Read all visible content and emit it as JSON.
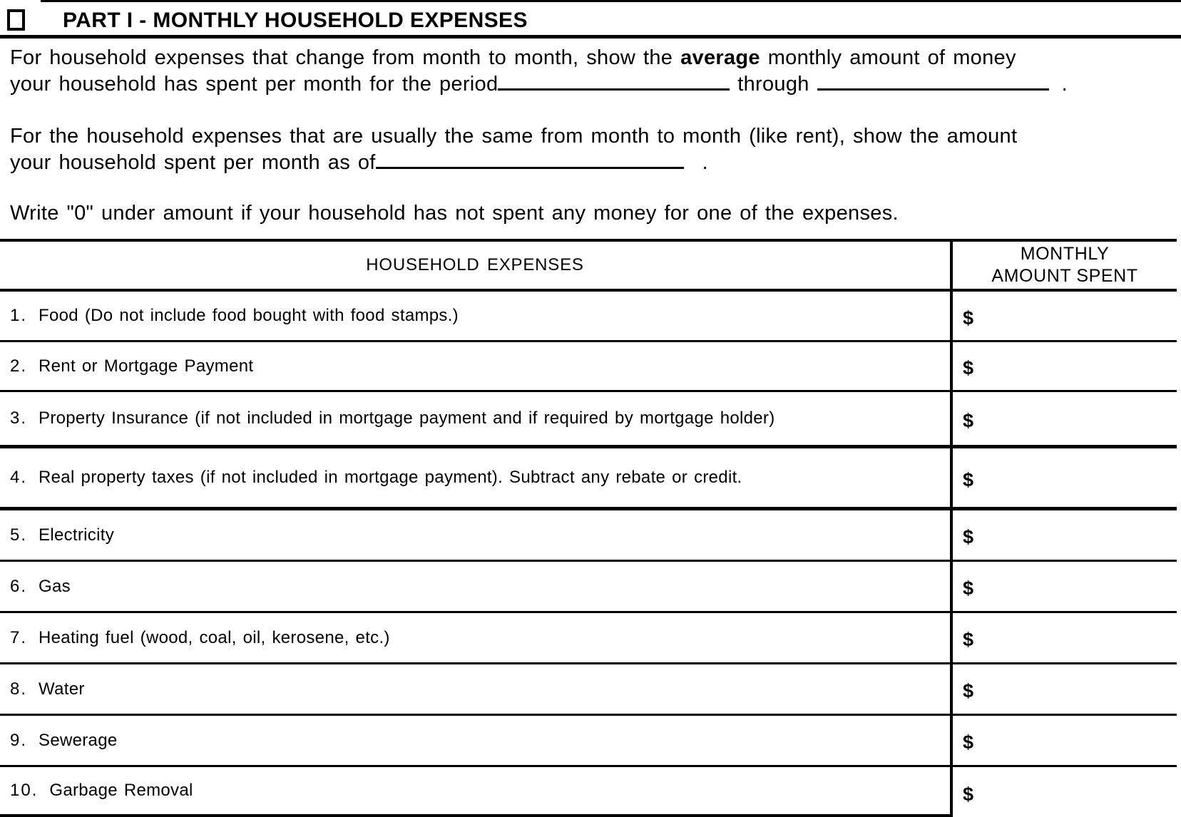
{
  "header": {
    "title": "PART I - MONTHLY HOUSEHOLD EXPENSES"
  },
  "intro": {
    "p1_line1_a": "For household expenses that change from month to month, show the ",
    "p1_line1_bold": "average",
    "p1_line1_b": " monthly amount of money",
    "p1_line2_a": "your household has spent per month for the period",
    "p1_through": "through",
    "p1_period": ".",
    "p2_line1": "For the household expenses that are usually the same from month to month (like rent), show the amount",
    "p2_line2_a": "your household spent per month as of",
    "p2_period": ".",
    "p3": "Write \"0\" under amount if your household has not spent any money for one of the expenses."
  },
  "table": {
    "col1_header": "HOUSEHOLD EXPENSES",
    "col2_header_line1": "MONTHLY",
    "col2_header_line2": "AMOUNT SPENT",
    "currency_symbol": "$",
    "rows": [
      {
        "num": "1.",
        "label": "Food (Do not include food bought with food stamps.)"
      },
      {
        "num": "2.",
        "label": "Rent or Mortgage Payment"
      },
      {
        "num": "3.",
        "label": "Property Insurance (if not included in mortgage payment and if required by mortgage holder)"
      },
      {
        "num": "4.",
        "label": "Real property taxes (if not included in mortgage payment).  Subtract any rebate or credit."
      },
      {
        "num": "5.",
        "label": "Electricity"
      },
      {
        "num": "6.",
        "label": "Gas"
      },
      {
        "num": "7.",
        "label": "Heating fuel (wood, coal, oil, kerosene, etc.)"
      },
      {
        "num": "8.",
        "label": "Water"
      },
      {
        "num": "9.",
        "label": "Sewerage"
      },
      {
        "num": "10.",
        "label": "Garbage Removal"
      }
    ]
  }
}
